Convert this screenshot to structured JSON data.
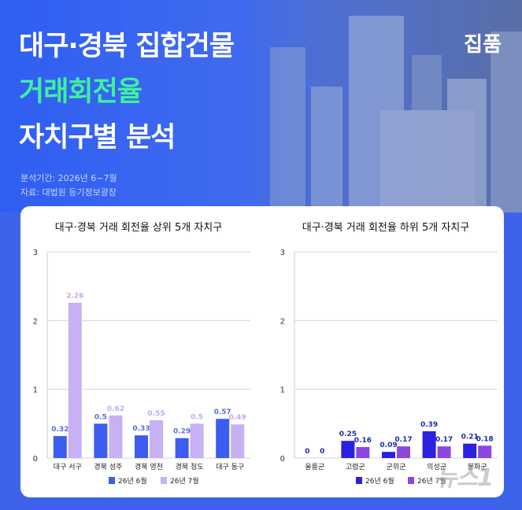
{
  "header": {
    "title_line1": "대구·경북 집합건물",
    "title_line2": "거래회전율",
    "title_line3": "자치구별 분석",
    "brand": "집품",
    "period": "분석기간: 2026년 6~7월",
    "source": "자료: 대법원 등기정보광장"
  },
  "watermark": "뉴스1",
  "colors": {
    "june": "#3d5cf0",
    "july_top": "#c7b1f4",
    "june_bottom": "#2a22e0",
    "july_bottom": "#8e46e0",
    "label_june": "#5a6fd8",
    "label_july": "#c3a9ee",
    "label_bottom": "#1c2ab0"
  },
  "chart_data": [
    {
      "type": "bar",
      "title": "대구·경북 거래 회전율 상위 5개 자치구",
      "categories": [
        "대구 서구",
        "경북 성주",
        "경북 영천",
        "경북 청도",
        "대구 동구"
      ],
      "series": [
        {
          "name": "26년 6월",
          "values": [
            0.32,
            0.5,
            0.33,
            0.29,
            0.57
          ]
        },
        {
          "name": "26년 7월",
          "values": [
            2.26,
            0.62,
            0.55,
            0.5,
            0.49
          ]
        }
      ],
      "value_labels": [
        [
          "0.32",
          "0.5",
          "0.33",
          "0.29",
          "0.57"
        ],
        [
          "2.26",
          "0.62",
          "0.55",
          "0.5",
          "0.49"
        ]
      ],
      "y_ticks": [
        "0",
        "1",
        "2",
        "3"
      ],
      "ylim": [
        0,
        3
      ],
      "grid": true,
      "legend": "bottom"
    },
    {
      "type": "bar",
      "title": "대구·경북 거래 회전율 하위 5개 자치구",
      "categories": [
        "울릉군",
        "고령군",
        "군위군",
        "의성군",
        "봉화군"
      ],
      "series": [
        {
          "name": "26년 6월",
          "values": [
            0,
            0.25,
            0.09,
            0.39,
            0.21
          ]
        },
        {
          "name": "26년 7월",
          "values": [
            0,
            0.16,
            0.17,
            0.17,
            0.18
          ]
        }
      ],
      "value_labels": [
        [
          "0",
          "0.25",
          "0.09",
          "0.39",
          "0.21"
        ],
        [
          "0",
          "0.16",
          "0.17",
          "0.17",
          "0.18"
        ]
      ],
      "y_ticks": [
        "0",
        "1",
        "2",
        "3"
      ],
      "ylim": [
        0,
        3
      ],
      "grid": true,
      "legend": "bottom"
    }
  ]
}
